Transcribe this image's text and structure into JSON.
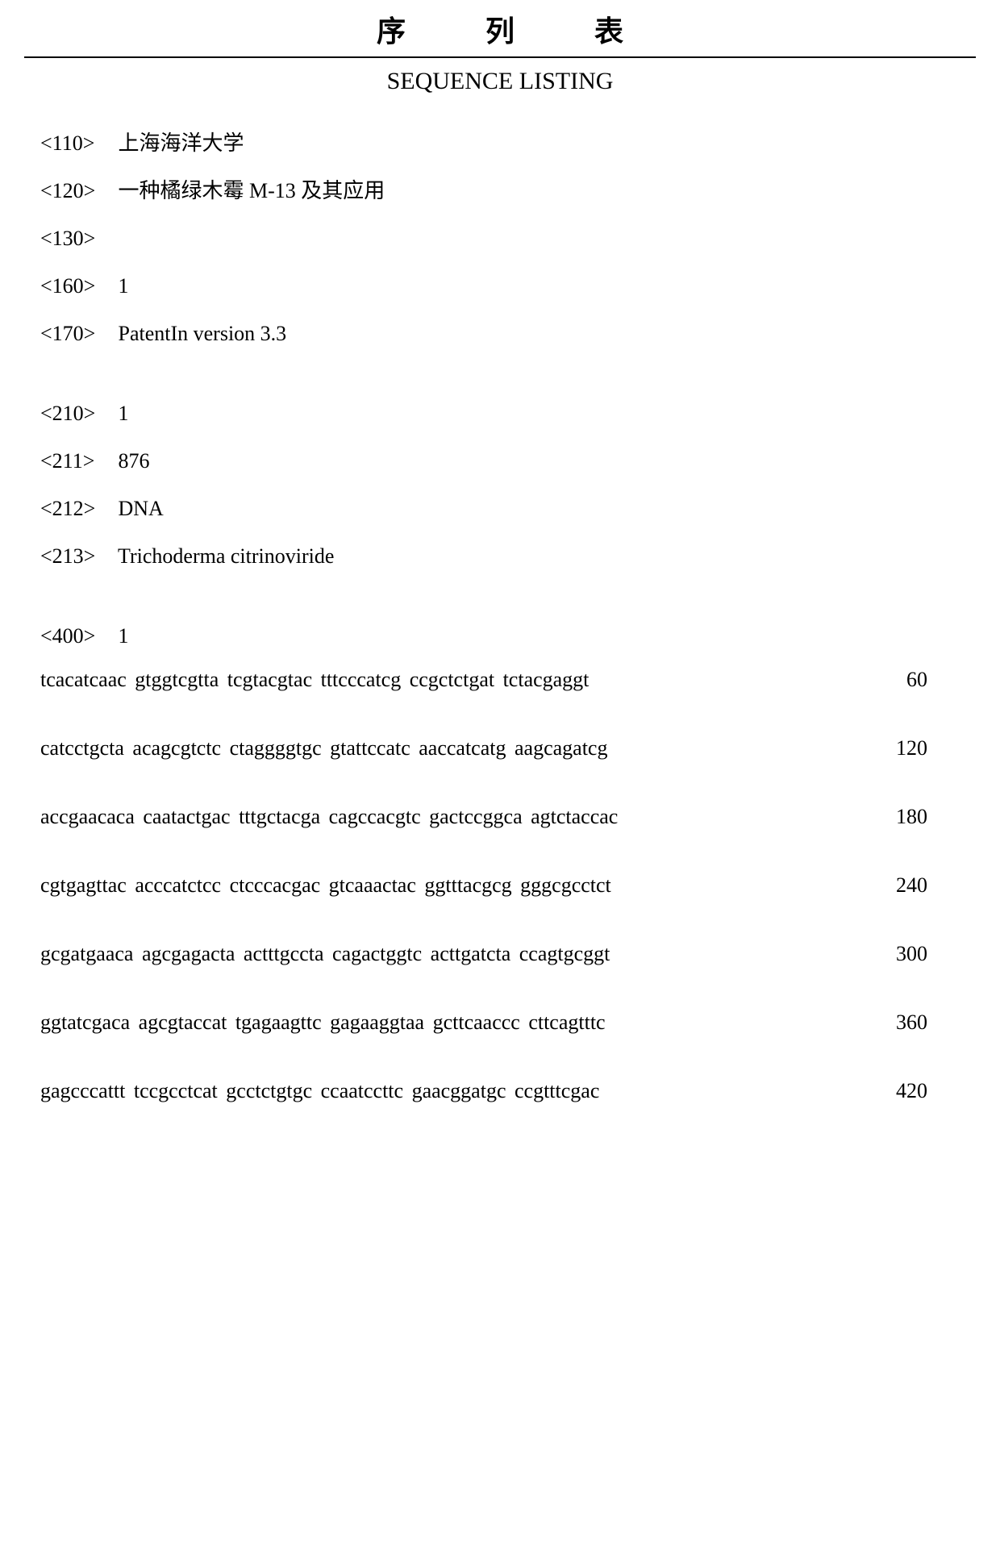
{
  "document": {
    "main_title": "序 列 表",
    "subtitle": "SEQUENCE LISTING",
    "header_entries": [
      {
        "tag": "<110>",
        "value": "上海海洋大学"
      },
      {
        "tag": "<120>",
        "value": "一种橘绿木霉 M-13 及其应用"
      },
      {
        "tag": "<130>",
        "value": ""
      },
      {
        "tag": "<160>",
        "value": "1"
      },
      {
        "tag": "<170>",
        "value": "PatentIn version 3.3"
      }
    ],
    "sequence_info": [
      {
        "tag": "<210>",
        "value": "1"
      },
      {
        "tag": "<211>",
        "value": "876"
      },
      {
        "tag": "<212>",
        "value": "DNA"
      },
      {
        "tag": "<213>",
        "value": "Trichoderma citrinoviride"
      }
    ],
    "sequence_start": [
      {
        "tag": "<400>",
        "value": "1"
      }
    ],
    "sequences": [
      {
        "text": "tcacatcaac gtggtcgtta tcgtacgtac tttcccatcg ccgctctgat tctacgaggt",
        "number": "60"
      },
      {
        "text": "catcctgcta acagcgtctc ctaggggtgc gtattccatc aaccatcatg aagcagatcg",
        "number": "120"
      },
      {
        "text": "accgaacaca caatactgac tttgctacga cagccacgtc gactccggca agtctaccac",
        "number": "180"
      },
      {
        "text": "cgtgagttac acccatctcc ctcccacgac gtcaaactac ggtttacgcg gggcgcctct",
        "number": "240"
      },
      {
        "text": "gcgatgaaca agcgagacta actttgccta cagactggtc acttgatcta ccagtgcggt",
        "number": "300"
      },
      {
        "text": "ggtatcgaca agcgtaccat tgagaagttc gagaaggtaa gcttcaaccc cttcagtttc",
        "number": "360"
      },
      {
        "text": "gagcccattt tccgcctcat gcctctgtgc ccaatccttc gaacggatgc ccgtttcgac",
        "number": "420"
      }
    ],
    "styling": {
      "background_color": "#ffffff",
      "text_color": "#000000",
      "font_family": "Times New Roman",
      "main_title_fontsize": 36,
      "subtitle_fontsize": 30,
      "body_fontsize": 26,
      "title_letter_spacing": 45,
      "divider_color": "#000000",
      "divider_width": 2
    }
  }
}
